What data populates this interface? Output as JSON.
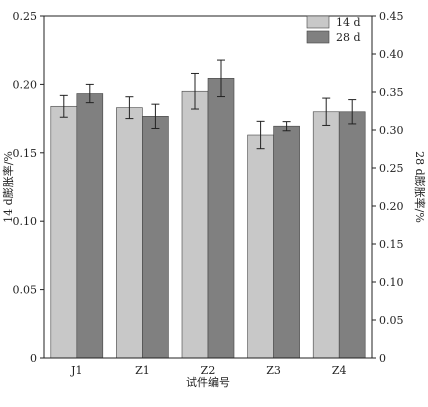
{
  "chart_data": {
    "type": "bar",
    "title": "",
    "xlabel": "试件编号",
    "ylabel": "14 d膨胀率/%",
    "y2label": "28 d膨胀率/%",
    "categories": [
      "J1",
      "Z1",
      "Z2",
      "Z3",
      "Z4"
    ],
    "ylim": [
      0,
      0.25
    ],
    "yticks": [
      "0",
      "0.05",
      "0.10",
      "0.15",
      "0.20",
      "0.25"
    ],
    "y2lim": [
      0,
      0.45
    ],
    "y2ticks": [
      "0",
      "0.05",
      "0.10",
      "0.15",
      "0.20",
      "0.25",
      "0.30",
      "0.35",
      "0.40",
      "0.45"
    ],
    "legend_position": "top-right",
    "series": [
      {
        "name": "14 d",
        "axis": "left",
        "color": "#c8c8c8",
        "values": [
          0.184,
          0.183,
          0.195,
          0.163,
          0.18
        ],
        "errors": [
          0.008,
          0.008,
          0.013,
          0.01,
          0.01
        ]
      },
      {
        "name": "28 d",
        "axis": "right",
        "color": "#808080",
        "values": [
          0.348,
          0.318,
          0.368,
          0.305,
          0.324
        ],
        "errors": [
          0.012,
          0.016,
          0.024,
          0.006,
          0.016
        ]
      }
    ]
  }
}
